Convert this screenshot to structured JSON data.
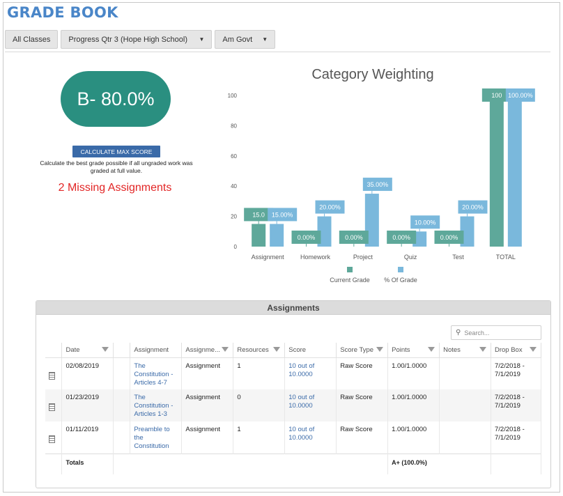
{
  "header": {
    "title": "GRADE BOOK"
  },
  "toolbar": {
    "all_classes": "All Classes",
    "period": "Progress Qtr 3 (Hope High School)",
    "course": "Am Govt"
  },
  "grade": {
    "value": "B- 80.0%",
    "calc_button": "CALCULATE MAX SCORE",
    "calc_description": "Calculate the best grade possible if all ungraded work was graded at full value.",
    "missing": "2 Missing Assignments"
  },
  "chart_data": {
    "type": "bar",
    "title": "Category Weighting",
    "categories": [
      "Assignment",
      "Homework",
      "Project",
      "Quiz",
      "Test",
      "TOTAL"
    ],
    "series": [
      {
        "name": "Current Grade",
        "color": "#5ea89a",
        "values": [
          15,
          0,
          0,
          0,
          0,
          100
        ],
        "labels": [
          "15.0",
          "0.00%",
          "0.00%",
          "0.00%",
          "0.00%",
          "100"
        ]
      },
      {
        "name": "% Of Grade",
        "color": "#7ab8dc",
        "values": [
          15,
          20,
          35,
          10,
          20,
          100
        ],
        "labels": [
          "15.00%",
          "20.00%",
          "35.00%",
          "10.00%",
          "20.00%",
          "100.00%"
        ]
      }
    ],
    "yticks": [
      "0",
      "20",
      "40",
      "60",
      "80",
      "100"
    ],
    "ylim": [
      0,
      100
    ],
    "grid": false,
    "legend": "bottom"
  },
  "assignments": {
    "title": "Assignments",
    "search_placeholder": "Search...",
    "columns": [
      "Date",
      "Assignment",
      "Assignme...",
      "Resources",
      "Score",
      "Score Type",
      "Points",
      "Notes",
      "Drop Box"
    ],
    "rows": [
      {
        "date": "02/08/2019",
        "assignment": "The Constitution - Articles 4-7",
        "type": "Assignment",
        "resources": "1",
        "score": "10 out of 10.0000",
        "score_type": "Raw Score",
        "points": "1.00/1.0000",
        "notes": "",
        "drop_box": "7/2/2018 - 7/1/2019"
      },
      {
        "date": "01/23/2019",
        "assignment": "The Constitution - Articles 1-3",
        "type": "Assignment",
        "resources": "0",
        "score": "10 out of 10.0000",
        "score_type": "Raw Score",
        "points": "1.00/1.0000",
        "notes": "",
        "drop_box": "7/2/2018 - 7/1/2019"
      },
      {
        "date": "01/11/2019",
        "assignment": "Preamble to the Constitution",
        "type": "Assignment",
        "resources": "1",
        "score": "10 out of 10.0000",
        "score_type": "Raw Score",
        "points": "1.00/1.0000",
        "notes": "",
        "drop_box": "7/2/2018 - 7/1/2019"
      }
    ],
    "totals_label": "Totals",
    "totals_value": "A+ (100.0%)"
  }
}
